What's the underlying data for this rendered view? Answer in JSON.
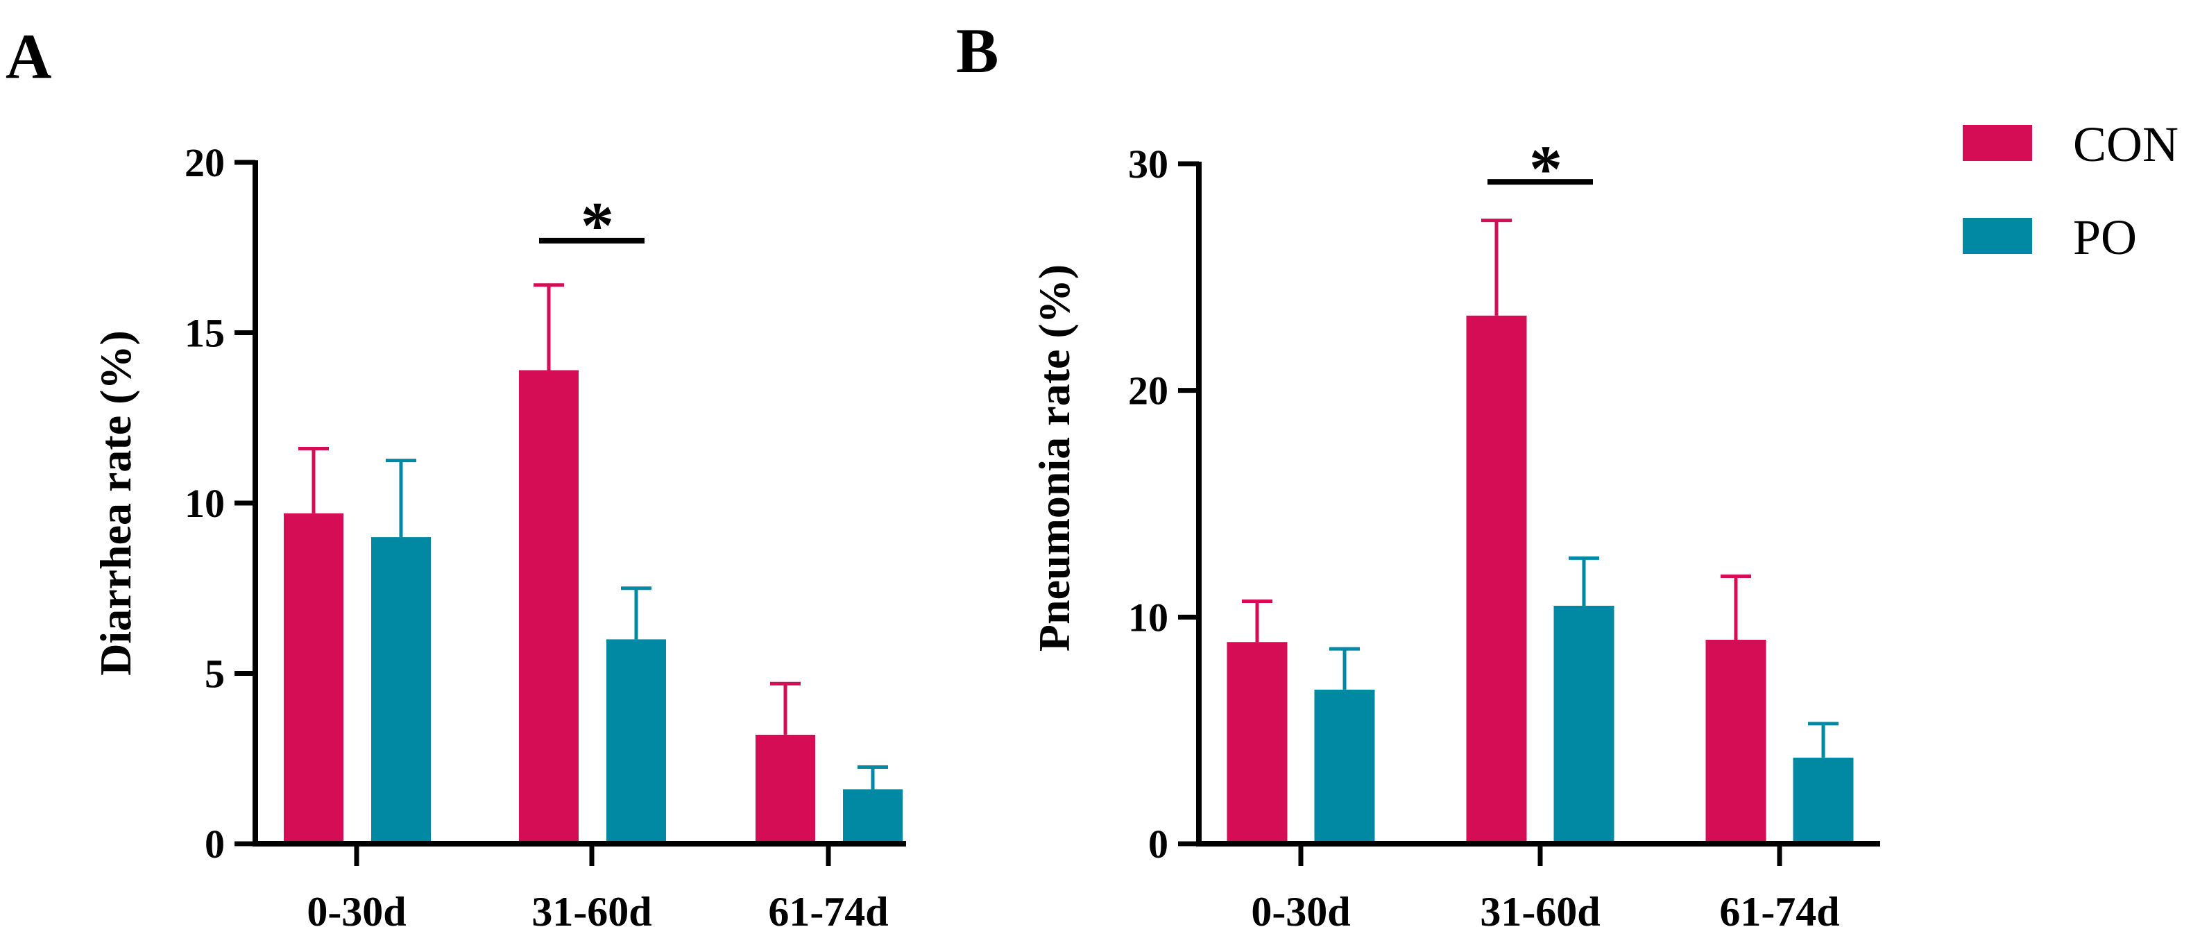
{
  "colors": {
    "CON": "#d40d55",
    "PO": "#0189a3",
    "axis": "#000000"
  },
  "legend": [
    {
      "key": "CON",
      "label": "CON"
    },
    {
      "key": "PO",
      "label": "PO"
    }
  ],
  "chart_data": [
    {
      "type": "bar",
      "panel_label": "A",
      "title": "",
      "xlabel": "",
      "ylabel": "Diarrhea rate (%)",
      "ylim": [
        0,
        20
      ],
      "yticks": [
        0,
        5,
        10,
        15,
        20
      ],
      "categories": [
        "0-30d",
        "31-60d",
        "61-74d"
      ],
      "series": [
        {
          "name": "CON",
          "values": [
            9.7,
            13.9,
            3.2
          ],
          "errors": [
            1.9,
            2.5,
            1.5
          ]
        },
        {
          "name": "PO",
          "values": [
            9.0,
            6.0,
            1.6
          ],
          "errors": [
            2.25,
            1.5,
            0.65
          ]
        }
      ],
      "annotations": [
        {
          "category_index": 1,
          "text": "*",
          "level": 17.7,
          "star_level": 18.3
        }
      ]
    },
    {
      "type": "bar",
      "panel_label": "B",
      "title": "",
      "xlabel": "",
      "ylabel": "Pneumonia rate (%)",
      "ylim": [
        0,
        30
      ],
      "yticks": [
        0,
        10,
        20,
        30
      ],
      "categories": [
        "0-30d",
        "31-60d",
        "61-74d"
      ],
      "series": [
        {
          "name": "CON",
          "values": [
            8.9,
            23.3,
            9.0
          ],
          "errors": [
            1.8,
            4.2,
            2.8
          ]
        },
        {
          "name": "PO",
          "values": [
            6.8,
            10.5,
            3.8
          ],
          "errors": [
            1.8,
            2.1,
            1.5
          ]
        }
      ],
      "annotations": [
        {
          "category_index": 1,
          "text": "*",
          "level": 29.2,
          "star_level": 30.0
        }
      ]
    }
  ]
}
